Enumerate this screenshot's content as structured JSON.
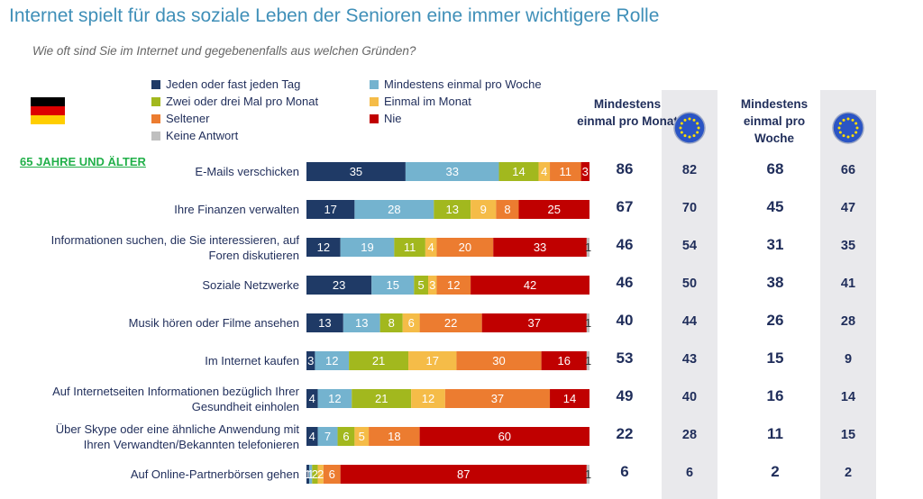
{
  "title": "Internet spielt für das soziale Leben der Senioren eine immer wichtigere Rolle",
  "subtitle": "Wie oft sind Sie im Internet und gegebenenfalls aus welchen Gründen?",
  "group_label": "65 JAHRE UND ÄLTER",
  "flag_icon": "germany-flag-icon",
  "eu_icon": "eu-flag-icon",
  "colors": {
    "daily": "#1f3a66",
    "weekly": "#74b3cf",
    "twothree": "#a2b81e",
    "monthly": "#f5bc48",
    "rarely": "#ec7c30",
    "never": "#c00000",
    "noanswer": "#bfbfbf"
  },
  "legend": [
    {
      "key": "daily",
      "label": "Jeden oder fast jeden Tag"
    },
    {
      "key": "weekly",
      "label": "Mindestens einmal pro Woche"
    },
    {
      "key": "twothree",
      "label": "Zwei oder drei Mal pro Monat"
    },
    {
      "key": "monthly",
      "label": "Einmal im Monat"
    },
    {
      "key": "rarely",
      "label": "Seltener"
    },
    {
      "key": "never",
      "label": "Nie"
    },
    {
      "key": "noanswer",
      "label": "Keine Antwort"
    }
  ],
  "headers": {
    "month": "Mindestens einmal pro Monat",
    "week": "Mindestens einmal pro Woche"
  },
  "chart_data": {
    "type": "bar",
    "orientation": "horizontal",
    "stacked": true,
    "unit": "%",
    "categories": [
      "E-Mails verschicken",
      "Ihre Finanzen verwalten",
      "Informationen suchen, die Sie interessieren, auf Foren diskutieren",
      "Soziale Netzwerke",
      "Musik hören oder Filme ansehen",
      "Im Internet kaufen",
      "Auf Internetseiten Informationen bezüglich Ihrer Gesundheit einholen",
      "Über Skype oder eine ähnliche Anwendung mit Ihren Verwandten/Bekannten telefonieren",
      "Auf Online-Partnerbörsen gehen"
    ],
    "category_lines": [
      [
        "E-Mails verschicken"
      ],
      [
        "Ihre Finanzen verwalten"
      ],
      [
        "Informationen suchen, die Sie interessieren, auf",
        "Foren diskutieren"
      ],
      [
        "Soziale Netzwerke"
      ],
      [
        "Musik hören oder Filme ansehen"
      ],
      [
        "Im Internet kaufen"
      ],
      [
        "Auf Internetseiten Informationen bezüglich Ihrer",
        "Gesundheit einholen"
      ],
      [
        "Über Skype oder eine ähnliche Anwendung mit",
        "Ihren Verwandten/Bekannten telefonieren"
      ],
      [
        "Auf Online-Partnerbörsen gehen"
      ]
    ],
    "series": [
      {
        "key": "daily",
        "name": "Jeden oder fast jeden Tag",
        "values": [
          35,
          17,
          12,
          23,
          13,
          3,
          4,
          4,
          1
        ]
      },
      {
        "key": "weekly",
        "name": "Mindestens einmal pro Woche",
        "values": [
          33,
          28,
          19,
          15,
          13,
          12,
          12,
          7,
          1
        ]
      },
      {
        "key": "twothree",
        "name": "Zwei oder drei Mal pro Monat",
        "values": [
          14,
          13,
          11,
          5,
          8,
          21,
          21,
          6,
          2
        ]
      },
      {
        "key": "monthly",
        "name": "Einmal im Monat",
        "values": [
          4,
          9,
          4,
          3,
          6,
          17,
          12,
          5,
          2
        ]
      },
      {
        "key": "rarely",
        "name": "Seltener",
        "values": [
          11,
          8,
          20,
          12,
          22,
          30,
          37,
          18,
          6
        ]
      },
      {
        "key": "never",
        "name": "Nie",
        "values": [
          3,
          25,
          33,
          42,
          37,
          16,
          14,
          60,
          87
        ]
      },
      {
        "key": "noanswer",
        "name": "Keine Antwort",
        "values": [
          0,
          0,
          1,
          0,
          1,
          1,
          0,
          0,
          1
        ]
      }
    ],
    "summary": {
      "month_de": [
        86,
        67,
        46,
        46,
        40,
        53,
        49,
        22,
        6
      ],
      "month_eu": [
        82,
        70,
        54,
        50,
        44,
        43,
        40,
        28,
        6
      ],
      "week_de": [
        68,
        45,
        31,
        38,
        26,
        15,
        16,
        11,
        2
      ],
      "week_eu": [
        66,
        47,
        35,
        41,
        28,
        9,
        14,
        15,
        2
      ]
    }
  }
}
